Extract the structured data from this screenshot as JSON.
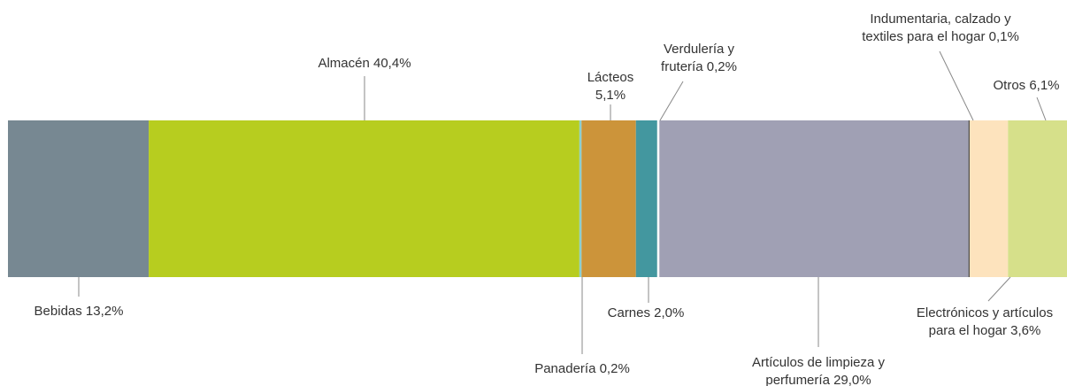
{
  "chart_data": {
    "type": "stacked-bar",
    "labels": [
      [
        "Bebidas 13,2%"
      ],
      [
        "Almacén 40,4%"
      ],
      [
        "Panadería 0,2%"
      ],
      [
        "Lácteos",
        "5,1%"
      ],
      [
        "Carnes 2,0%"
      ],
      [
        "Verdulería y",
        "frutería 0,2%"
      ],
      [
        "Artículos de limpieza y",
        "perfumería 29,0%"
      ],
      [
        "Indumentaria, calzado y",
        "textiles para el hogar 0,1%"
      ],
      [
        "Electrónicos y artículos",
        "para el hogar 3,6%"
      ],
      [
        "Otros 6,1%"
      ]
    ],
    "values": [
      13.2,
      40.4,
      0.2,
      5.1,
      2.0,
      0.2,
      29.0,
      0.1,
      3.6,
      6.1
    ],
    "colors": [
      "#778892",
      "#b7cd1f",
      "#8ccfd0",
      "#cc943a",
      "#43979f",
      "#ffffff",
      "#a0a0b4",
      "#333333",
      "#fde3bd",
      "#d6e08a"
    ],
    "xlim": [
      0,
      100
    ]
  }
}
